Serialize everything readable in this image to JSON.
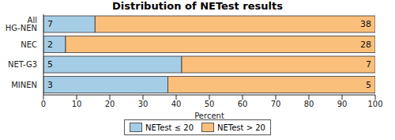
{
  "chart_data": {
    "type": "bar",
    "title": "Distribution of NETest results",
    "x_label": "Percent",
    "orientation": "horizontal",
    "stacked": true,
    "legend": "bottom",
    "categories": [
      "All HG-NEN",
      "NEC",
      "NET-G3",
      "MINEN"
    ],
    "series": [
      {
        "name": "NETest ≤ 20",
        "color": "#a6cde6",
        "values": [
          15.56,
          6.67,
          41.67,
          37.5
        ],
        "counts": [
          7,
          2,
          5,
          3
        ]
      },
      {
        "name": "NETest > 20",
        "color": "#fbbf7c",
        "values": [
          84.44,
          93.33,
          58.33,
          62.5
        ],
        "counts": [
          38,
          28,
          7,
          5
        ]
      }
    ],
    "xlim": [
      0,
      100
    ],
    "xticks": [
      0,
      10,
      20,
      30,
      40,
      50,
      60,
      70,
      80,
      90,
      100
    ]
  }
}
